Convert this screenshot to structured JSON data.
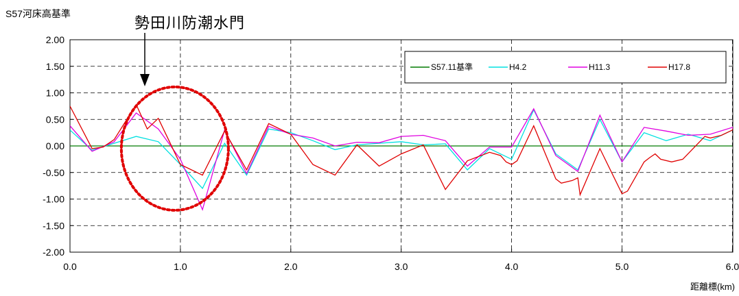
{
  "chart_data": {
    "type": "line",
    "ylabel": "S57河床高基準",
    "xlabel": "距離標(km)",
    "annotation": "勢田川防潮水門",
    "xlim": [
      0.0,
      6.0
    ],
    "ylim": [
      -2.0,
      2.0
    ],
    "x_ticks": [
      "0.0",
      "1.0",
      "2.0",
      "3.0",
      "4.0",
      "5.0",
      "6.0"
    ],
    "y_ticks": [
      "2.00",
      "1.50",
      "1.00",
      "0.50",
      "0.00",
      "-0.50",
      "-1.00",
      "-1.50",
      "-2.00"
    ],
    "grid": true,
    "legend_position": "top-right",
    "series": [
      {
        "name": "S57.11基準",
        "color": "#007a00",
        "points": [
          [
            0.0,
            0.0
          ],
          [
            6.0,
            0.0
          ]
        ]
      },
      {
        "name": "H4.2",
        "color": "#00e0e0",
        "points": [
          [
            0.0,
            0.3
          ],
          [
            0.2,
            -0.08
          ],
          [
            0.4,
            0.05
          ],
          [
            0.6,
            0.18
          ],
          [
            0.8,
            0.08
          ],
          [
            1.0,
            -0.35
          ],
          [
            1.2,
            -0.8
          ],
          [
            1.4,
            0.05
          ],
          [
            1.6,
            -0.55
          ],
          [
            1.8,
            0.32
          ],
          [
            2.0,
            0.25
          ],
          [
            2.2,
            0.1
          ],
          [
            2.4,
            -0.07
          ],
          [
            2.6,
            0.02
          ],
          [
            2.8,
            0.05
          ],
          [
            3.0,
            0.08
          ],
          [
            3.2,
            0.02
          ],
          [
            3.4,
            0.04
          ],
          [
            3.6,
            -0.45
          ],
          [
            3.8,
            -0.05
          ],
          [
            4.0,
            -0.25
          ],
          [
            4.2,
            0.68
          ],
          [
            4.4,
            -0.15
          ],
          [
            4.6,
            -0.45
          ],
          [
            4.8,
            0.5
          ],
          [
            5.0,
            -0.3
          ],
          [
            5.2,
            0.25
          ],
          [
            5.4,
            0.1
          ],
          [
            5.6,
            0.22
          ],
          [
            5.8,
            0.1
          ],
          [
            6.0,
            0.3
          ]
        ]
      },
      {
        "name": "H11.3",
        "color": "#e000e0",
        "points": [
          [
            0.0,
            0.38
          ],
          [
            0.2,
            -0.1
          ],
          [
            0.4,
            0.08
          ],
          [
            0.6,
            0.62
          ],
          [
            0.8,
            0.32
          ],
          [
            1.0,
            -0.25
          ],
          [
            1.2,
            -1.2
          ],
          [
            1.4,
            0.3
          ],
          [
            1.6,
            -0.52
          ],
          [
            1.8,
            0.37
          ],
          [
            2.0,
            0.22
          ],
          [
            2.2,
            0.15
          ],
          [
            2.4,
            0.0
          ],
          [
            2.6,
            0.07
          ],
          [
            2.8,
            0.06
          ],
          [
            3.0,
            0.18
          ],
          [
            3.2,
            0.2
          ],
          [
            3.4,
            0.1
          ],
          [
            3.6,
            -0.38
          ],
          [
            3.8,
            -0.02
          ],
          [
            4.0,
            -0.02
          ],
          [
            4.2,
            0.7
          ],
          [
            4.4,
            -0.18
          ],
          [
            4.6,
            -0.48
          ],
          [
            4.8,
            0.58
          ],
          [
            5.0,
            -0.3
          ],
          [
            5.2,
            0.35
          ],
          [
            5.4,
            0.28
          ],
          [
            5.6,
            0.2
          ],
          [
            5.8,
            0.22
          ],
          [
            6.0,
            0.35
          ],
          [
            6.05,
            0.0
          ]
        ]
      },
      {
        "name": "H17.8",
        "color": "#e00000",
        "points": [
          [
            0.0,
            0.75
          ],
          [
            0.2,
            -0.05
          ],
          [
            0.3,
            -0.02
          ],
          [
            0.4,
            0.12
          ],
          [
            0.5,
            0.45
          ],
          [
            0.6,
            0.78
          ],
          [
            0.7,
            0.32
          ],
          [
            0.8,
            0.52
          ],
          [
            1.0,
            -0.35
          ],
          [
            1.2,
            -0.55
          ],
          [
            1.4,
            0.28
          ],
          [
            1.6,
            -0.45
          ],
          [
            1.8,
            0.42
          ],
          [
            2.0,
            0.22
          ],
          [
            2.2,
            -0.35
          ],
          [
            2.4,
            -0.55
          ],
          [
            2.6,
            0.02
          ],
          [
            2.8,
            -0.38
          ],
          [
            3.0,
            -0.15
          ],
          [
            3.2,
            0.02
          ],
          [
            3.4,
            -0.82
          ],
          [
            3.6,
            -0.28
          ],
          [
            3.8,
            -0.12
          ],
          [
            3.9,
            -0.18
          ],
          [
            3.95,
            -0.3
          ],
          [
            4.0,
            -0.35
          ],
          [
            4.05,
            -0.28
          ],
          [
            4.2,
            0.38
          ],
          [
            4.4,
            -0.62
          ],
          [
            4.45,
            -0.7
          ],
          [
            4.55,
            -0.65
          ],
          [
            4.6,
            -0.6
          ],
          [
            4.62,
            -0.92
          ],
          [
            4.8,
            -0.05
          ],
          [
            5.0,
            -0.9
          ],
          [
            5.05,
            -0.85
          ],
          [
            5.2,
            -0.3
          ],
          [
            5.25,
            -0.22
          ],
          [
            5.3,
            -0.15
          ],
          [
            5.35,
            -0.25
          ],
          [
            5.45,
            -0.3
          ],
          [
            5.55,
            -0.25
          ],
          [
            5.75,
            0.18
          ],
          [
            5.8,
            0.15
          ],
          [
            5.9,
            0.2
          ],
          [
            6.0,
            0.3
          ],
          [
            6.05,
            0.5
          ]
        ]
      }
    ]
  }
}
